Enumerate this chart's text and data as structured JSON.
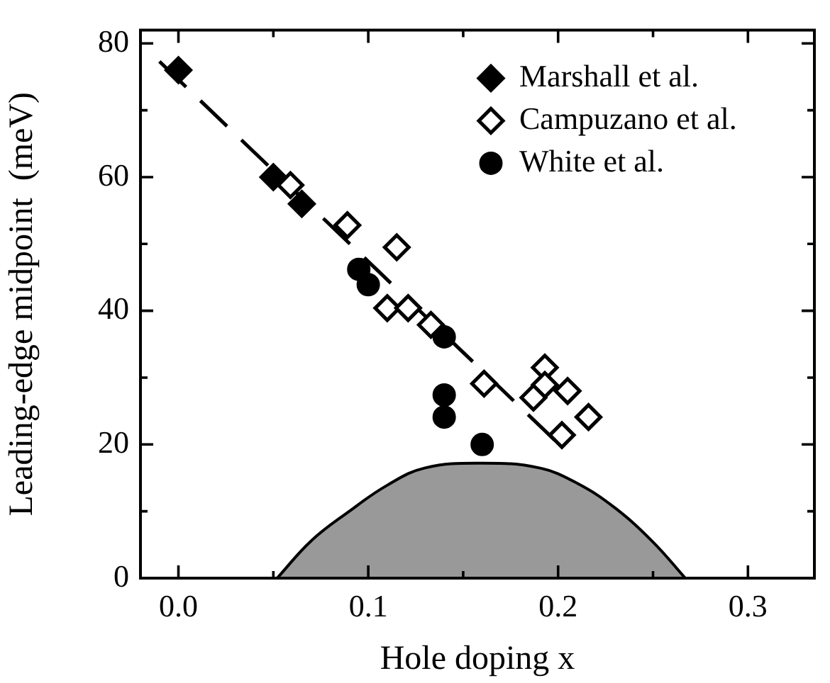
{
  "chart_data": {
    "type": "scatter",
    "xlabel": "Hole doping x",
    "ylabel": "Leading-edge midpoint  (meV)",
    "xlim": [
      -0.02,
      0.335
    ],
    "ylim": [
      0,
      82
    ],
    "xticks": [
      {
        "value": 0,
        "label": "0.0"
      },
      {
        "value": 0.05,
        "label": null
      },
      {
        "value": 0.1,
        "label": "0.1"
      },
      {
        "value": 0.15,
        "label": null
      },
      {
        "value": 0.2,
        "label": "0.2"
      },
      {
        "value": 0.25,
        "label": null
      },
      {
        "value": 0.3,
        "label": "0.3"
      }
    ],
    "yticks": [
      0,
      {
        "value": 10,
        "label": null
      },
      20,
      {
        "value": 30,
        "label": null
      },
      40,
      {
        "value": 50,
        "label": null
      },
      60,
      {
        "value": 70,
        "label": null
      },
      80
    ],
    "grid": false,
    "legend": "top right",
    "series": [
      {
        "type": "area",
        "color": "#999999",
        "x": [
          0.052,
          0.07,
          0.09,
          0.11,
          0.13,
          0.16,
          0.19,
          0.21,
          0.23,
          0.25,
          0.267
        ],
        "values": [
          0,
          5.6,
          10,
          13.9,
          16.5,
          17.2,
          16.5,
          14.2,
          10.5,
          5.4,
          0
        ]
      },
      {
        "type": "line",
        "line_style": "dashed",
        "color": "#000000",
        "x": [
          -0.01,
          0.205
        ],
        "values": [
          77.3,
          18.8
        ]
      },
      {
        "name": "Marshall et al.",
        "marker": "diamond",
        "color": "#000000",
        "x": [
          0,
          0.05,
          0.065
        ],
        "values": [
          76,
          60,
          56
        ]
      },
      {
        "name": "Campuzano et al.",
        "marker": "diamond",
        "color": "#ffffff",
        "x": [
          0.059,
          0.089,
          0.115,
          0.11,
          0.121,
          0.133,
          0.161,
          0.193,
          0.193,
          0.187,
          0.205,
          0.216,
          0.202
        ],
        "values": [
          58.8,
          52.8,
          49.5,
          40.4,
          40.4,
          37.9,
          29.1,
          31.5,
          28.9,
          27,
          28,
          24.1,
          21.4
        ]
      },
      {
        "name": "White et al.",
        "marker": "circle",
        "color": "#000000",
        "x": [
          0.095,
          0.1,
          0.14,
          0.14,
          0.14,
          0.16
        ],
        "values": [
          46.2,
          43.9,
          36.1,
          27.4,
          24.1,
          20
        ]
      }
    ]
  }
}
